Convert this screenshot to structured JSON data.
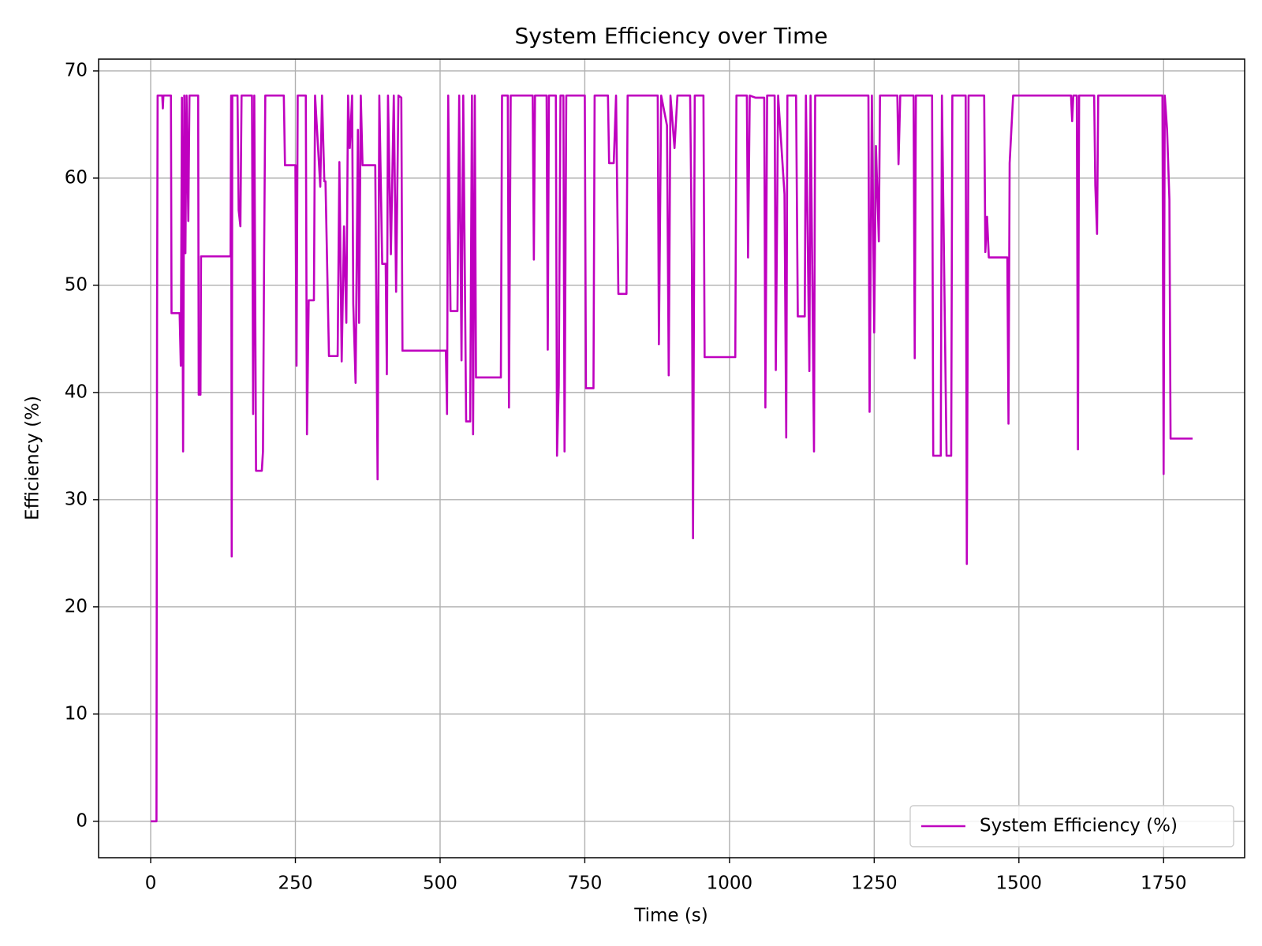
{
  "chart_data": {
    "type": "line",
    "title": "System Efficiency over Time",
    "x_label": "Time (s)",
    "y_label": "Efficiency (%)",
    "xlim": [
      -90,
      1890
    ],
    "ylim": [
      -3.4,
      71.1
    ],
    "xticks": [
      0,
      250,
      500,
      750,
      1000,
      1250,
      1500,
      1750
    ],
    "yticks": [
      0,
      10,
      20,
      30,
      40,
      50,
      60,
      70
    ],
    "grid": true,
    "legend": "lower right",
    "series": [
      {
        "name": "System Efficiency (%)",
        "color": "#bf00bf",
        "x": [
          0,
          10,
          11,
          12,
          20,
          21,
          22,
          35,
          36,
          50,
          52,
          54,
          56,
          58,
          60,
          62,
          65,
          67,
          82,
          83,
          86,
          87,
          138,
          139,
          140,
          141,
          150,
          152,
          155,
          157,
          175,
          177,
          179,
          182,
          192,
          194,
          196,
          198,
          230,
          232,
          250,
          252,
          254,
          268,
          270,
          273,
          282,
          284,
          293,
          296,
          300,
          302,
          308,
          323,
          326,
          330,
          334,
          338,
          341,
          344,
          348,
          350,
          354,
          358,
          360,
          363,
          366,
          388,
          392,
          395,
          400,
          406,
          408,
          410,
          415,
          420,
          424,
          428,
          433,
          435,
          510,
          512,
          514,
          518,
          530,
          533,
          537,
          540,
          545,
          552,
          555,
          557,
          560,
          562,
          605,
          607,
          617,
          619,
          622,
          660,
          662,
          664,
          684,
          686,
          688,
          700,
          702,
          705,
          708,
          713,
          715,
          718,
          750,
          752,
          765,
          767,
          790,
          792,
          800,
          804,
          808,
          822,
          824,
          876,
          878,
          882,
          892,
          895,
          898,
          905,
          910,
          932,
          935,
          937,
          940,
          955,
          957,
          1010,
          1012,
          1030,
          1032,
          1035,
          1045,
          1060,
          1062,
          1065,
          1078,
          1080,
          1084,
          1095,
          1098,
          1100,
          1115,
          1118,
          1130,
          1132,
          1138,
          1140,
          1146,
          1148,
          1240,
          1242,
          1246,
          1250,
          1253,
          1258,
          1260,
          1290,
          1292,
          1295,
          1318,
          1320,
          1322,
          1350,
          1352,
          1365,
          1367,
          1375,
          1383,
          1385,
          1408,
          1410,
          1413,
          1440,
          1442,
          1445,
          1448,
          1480,
          1482,
          1484,
          1490,
          1590,
          1592,
          1594,
          1600,
          1602,
          1604,
          1630,
          1632,
          1635,
          1637,
          1748,
          1750,
          1752,
          1756,
          1760,
          1762,
          1800
        ],
        "values": [
          0,
          0,
          47,
          67.7,
          67.7,
          66.5,
          67.7,
          67.7,
          47.4,
          47.4,
          42.5,
          67.5,
          34.5,
          67.7,
          53,
          67.7,
          56,
          67.7,
          67.7,
          39.8,
          39.8,
          52.7,
          52.7,
          67.7,
          24.7,
          67.7,
          67.7,
          57,
          55.5,
          67.7,
          67.7,
          38,
          67.7,
          32.7,
          32.7,
          34.5,
          53,
          67.7,
          67.7,
          61.2,
          61.2,
          42.5,
          67.7,
          67.7,
          36.1,
          48.6,
          48.6,
          67.7,
          59.2,
          67.7,
          59.7,
          59.7,
          43.4,
          43.4,
          61.5,
          42.9,
          55.5,
          46.5,
          67.7,
          62.8,
          67.7,
          48.3,
          40.9,
          64.5,
          46.5,
          67.7,
          61.2,
          61.2,
          31.9,
          67.7,
          52,
          52,
          41.7,
          67.7,
          52.9,
          67.7,
          49.4,
          67.7,
          67.5,
          43.9,
          43.9,
          38,
          67.7,
          47.6,
          47.6,
          67.7,
          43,
          67.7,
          37.3,
          37.3,
          67.7,
          36.1,
          67.7,
          41.4,
          41.4,
          67.7,
          67.7,
          38.6,
          67.7,
          67.7,
          52.4,
          67.7,
          67.7,
          44,
          67.7,
          67.7,
          34.1,
          40.7,
          67.7,
          67.7,
          34.5,
          67.7,
          67.7,
          40.4,
          40.4,
          67.7,
          67.7,
          61.4,
          61.4,
          67.7,
          49.2,
          49.2,
          67.7,
          67.7,
          44.5,
          67.7,
          64.9,
          41.6,
          67.7,
          62.8,
          67.7,
          67.7,
          53,
          26.4,
          67.7,
          67.7,
          43.3,
          43.3,
          67.7,
          67.7,
          52.6,
          67.7,
          67.5,
          67.5,
          38.6,
          67.7,
          67.7,
          42.1,
          67.7,
          58.5,
          35.8,
          67.7,
          67.7,
          47.1,
          47.1,
          67.7,
          42,
          67.7,
          34.5,
          67.7,
          67.7,
          38.2,
          67.7,
          45.6,
          63,
          54.1,
          67.7,
          67.7,
          61.3,
          67.7,
          67.7,
          43.2,
          67.7,
          67.7,
          34.1,
          34.1,
          67.7,
          34.1,
          34.1,
          67.7,
          67.7,
          24,
          67.7,
          67.7,
          53.1,
          56.4,
          52.6,
          52.6,
          37.1,
          61.4,
          67.7,
          67.7,
          65.3,
          67.7,
          67.7,
          34.7,
          67.7,
          67.7,
          59.3,
          54.8,
          67.7,
          67.7,
          32.4,
          67.7,
          64.5,
          58,
          35.7,
          35.7
        ]
      }
    ]
  }
}
